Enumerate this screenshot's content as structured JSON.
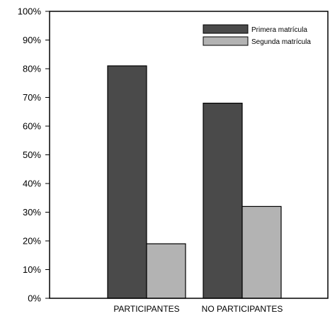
{
  "chart_data": {
    "type": "bar",
    "categories": [
      "PARTICIPANTES",
      "NO PARTICIPANTES"
    ],
    "series": [
      {
        "name": "Primera matrícula",
        "values": [
          81,
          68
        ],
        "color": "#4a4a4a"
      },
      {
        "name": "Segunda matrícula",
        "values": [
          19,
          32
        ],
        "color": "#b3b3b3"
      }
    ],
    "y_ticks": [
      "0%",
      "10%",
      "20%",
      "30%",
      "40%",
      "50%",
      "60%",
      "70%",
      "80%",
      "90%",
      "100%"
    ],
    "ylim": [
      0,
      100
    ],
    "grid": false,
    "legend_position": "top-right"
  }
}
